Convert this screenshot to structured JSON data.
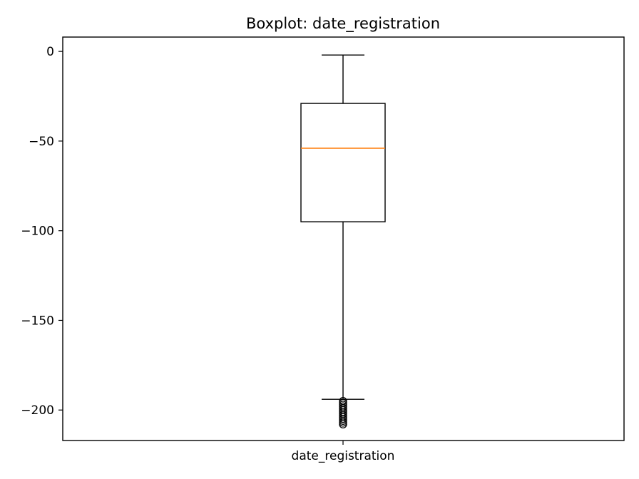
{
  "chart_data": {
    "type": "box",
    "title": "Boxplot: date_registration",
    "categories": [
      "date_registration"
    ],
    "xlabel": "",
    "ylabel": "",
    "ylim": [
      -217,
      8
    ],
    "yticks": [
      0,
      -50,
      -100,
      -150,
      -200
    ],
    "ytick_labels": [
      "0",
      "−50",
      "−100",
      "−150",
      "−200"
    ],
    "grid": false,
    "box": {
      "whisker_high": -2,
      "q3": -29,
      "median": -54,
      "q1": -95,
      "whisker_low": -194,
      "outliers": [
        -195,
        -196,
        -197,
        -198,
        -199,
        -200,
        -201,
        -202,
        -203,
        -204,
        -205,
        -206,
        -207,
        -208
      ]
    },
    "colors": {
      "box": "#000000",
      "median": "#ff7f0e",
      "outlier": "#000000"
    }
  }
}
